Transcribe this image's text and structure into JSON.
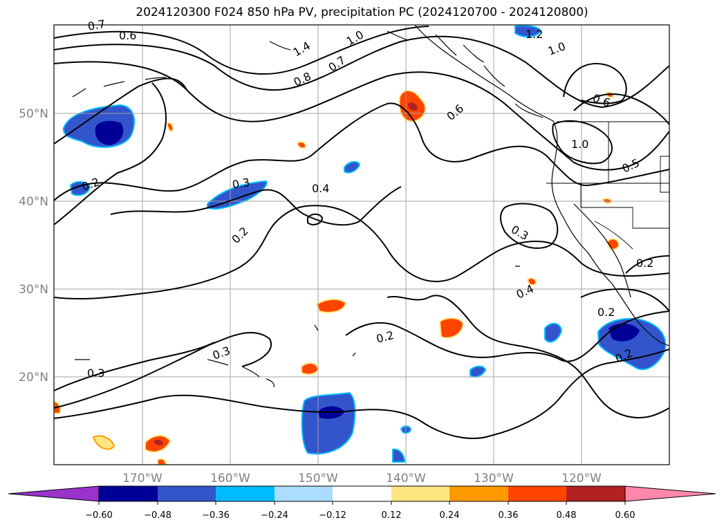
{
  "title": "2024120300 F024 850 hPa PV, precipitation PC (2024120700 - 2024120800)",
  "map": {
    "lat_labels": [
      "50°N",
      "40°N",
      "30°N",
      "20°N"
    ],
    "lon_labels": [
      "170°W",
      "160°W",
      "150°W",
      "140°W",
      "130°W",
      "120°W"
    ],
    "contour_labels": [
      "0.7",
      "0.6",
      "1.4",
      "1.0",
      "1.2",
      "1.0",
      "0.8",
      "0.7",
      "0.6",
      "0.6",
      "1.0",
      "0.5",
      "0.2",
      "0.3",
      "0.4",
      "0.2",
      "0.3",
      "0.2",
      "0.4",
      "0.2",
      "0.3",
      "0.2",
      "0.3",
      "0.2"
    ]
  },
  "colorbar": {
    "ticks": [
      "−0.60",
      "−0.48",
      "−0.36",
      "−0.24",
      "−0.12",
      "0.12",
      "0.24",
      "0.36",
      "0.48",
      "0.60"
    ],
    "colors": [
      "#9933cc",
      "#000099",
      "#3355cc",
      "#00bbff",
      "#aaddff",
      "#ffffff",
      "#ffe680",
      "#ff9900",
      "#ff4400",
      "#b22222",
      "#ff88aa"
    ]
  }
}
